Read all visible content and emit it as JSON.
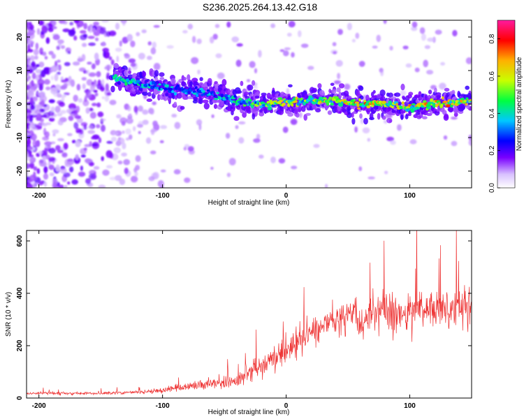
{
  "title": "S236.2025.264.13.42.G18",
  "chart_data": [
    {
      "type": "heatmap",
      "name": "spectrogram",
      "xlabel": "Height of straight line (km)",
      "ylabel": "Frequency (Hz)",
      "xlim": [
        -210,
        150
      ],
      "ylim": [
        -25,
        25
      ],
      "xticks": [
        -200,
        -100,
        0,
        100
      ],
      "yticks": [
        -20,
        -10,
        0,
        10,
        20
      ],
      "colorbar": {
        "label": "Normalized spectral amplitude",
        "range": [
          0.0,
          0.9
        ],
        "ticks": [
          0.0,
          0.2,
          0.4,
          0.6,
          0.8
        ]
      },
      "ridge": {
        "description": "dominant frequency track",
        "x": [
          -140,
          -120,
          -100,
          -80,
          -60,
          -40,
          -20,
          0,
          20,
          40,
          60,
          80,
          100,
          120,
          150
        ],
        "freq": [
          8,
          6,
          5,
          4,
          3,
          1,
          0,
          0.5,
          1,
          1,
          0,
          0,
          -1,
          0,
          1
        ],
        "amplitude": [
          0.35,
          0.35,
          0.3,
          0.3,
          0.3,
          0.35,
          0.45,
          0.5,
          0.5,
          0.5,
          0.6,
          0.5,
          0.55,
          0.6,
          0.55
        ]
      }
    },
    {
      "type": "line",
      "name": "snr",
      "xlabel": "Height of straight line (km)",
      "ylabel": "SNR (10 * v/v)",
      "xlim": [
        -210,
        150
      ],
      "ylim": [
        0,
        640
      ],
      "xticks": [
        -200,
        -100,
        0,
        100
      ],
      "yticks": [
        0,
        200,
        400,
        600
      ],
      "color": "#ee3333",
      "trend": {
        "x": [
          -210,
          -150,
          -120,
          -100,
          -80,
          -60,
          -40,
          -20,
          0,
          20,
          40,
          60,
          80,
          100,
          120,
          150
        ],
        "mean": [
          18,
          18,
          22,
          30,
          45,
          55,
          70,
          120,
          180,
          250,
          300,
          310,
          320,
          330,
          340,
          350
        ],
        "spread": [
          8,
          8,
          10,
          18,
          25,
          30,
          40,
          60,
          80,
          95,
          110,
          110,
          115,
          120,
          125,
          130
        ]
      }
    }
  ]
}
